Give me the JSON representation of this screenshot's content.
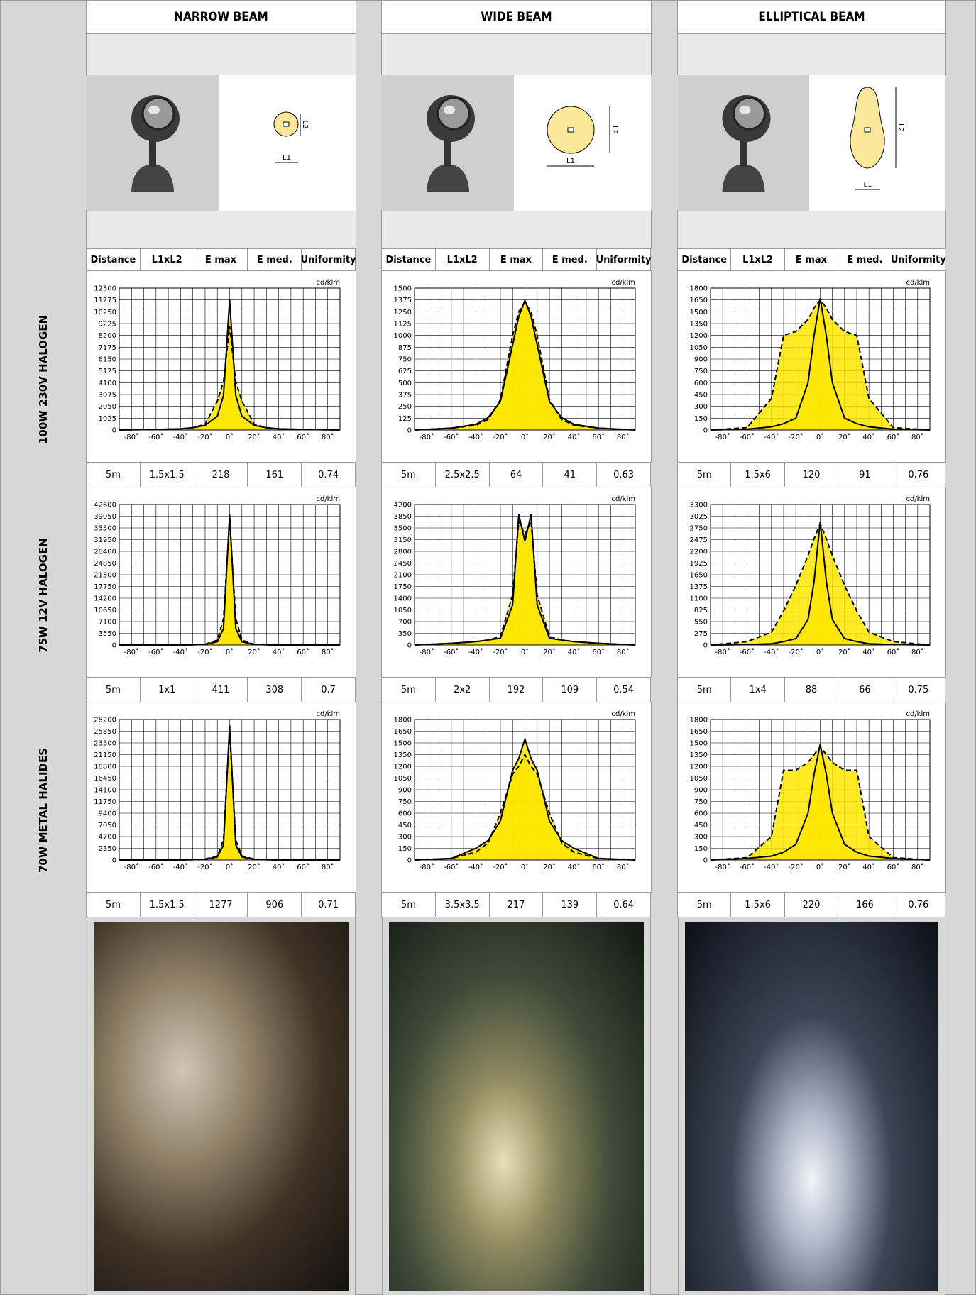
{
  "columns": [
    "NARROW BEAM",
    "WIDE BEAM",
    "ELLIPTICAL BEAM"
  ],
  "dimension_labels": [
    "L1",
    "L2"
  ],
  "table_header": [
    "Distance",
    "L1xL2",
    "E max",
    "E med.",
    "Uniformity"
  ],
  "unit": "cd/klm",
  "xlim": [
    -90,
    90
  ],
  "xticks": [
    {
      "value": -80,
      "label": "-80˚"
    },
    {
      "value": -60,
      "label": "-60˚"
    },
    {
      "value": -40,
      "label": "-40˚"
    },
    {
      "value": -20,
      "label": "-20˚"
    },
    {
      "value": 0,
      "label": "0˚"
    },
    {
      "value": 20,
      "label": "20˚"
    },
    {
      "value": 40,
      "label": "40˚"
    },
    {
      "value": 60,
      "label": "60˚"
    },
    {
      "value": 80,
      "label": "80˚"
    }
  ],
  "x": [
    -90,
    -60,
    -40,
    -30,
    -20,
    -10,
    -5,
    0,
    5,
    10,
    20,
    30,
    40,
    60,
    90
  ],
  "rows": [
    {
      "label": "100W 230V HALOGEN",
      "charts": [
        {
          "ylim": [
            0,
            12300
          ],
          "yticks": [
            0,
            1025,
            2050,
            3075,
            4100,
            5125,
            6150,
            7175,
            8200,
            9225,
            10250,
            11275,
            12300
          ],
          "series": [
            {
              "style": "solid",
              "values": [
                0,
                50,
                100,
                200,
                400,
                1200,
                3000,
                11300,
                3000,
                1200,
                400,
                200,
                100,
                50,
                0
              ]
            },
            {
              "style": "dashed",
              "values": [
                0,
                50,
                100,
                200,
                500,
                2500,
                4200,
                9000,
                4200,
                2500,
                500,
                200,
                100,
                50,
                0
              ]
            }
          ],
          "data": [
            "5m",
            "1.5x1.5",
            218,
            161,
            0.74
          ]
        },
        {
          "ylim": [
            0,
            1500
          ],
          "yticks": [
            0,
            125,
            250,
            375,
            500,
            625,
            750,
            875,
            1000,
            1125,
            1250,
            1375,
            1500
          ],
          "series": [
            {
              "style": "solid",
              "values": [
                0,
                20,
                60,
                130,
                300,
                900,
                1200,
                1370,
                1200,
                900,
                300,
                130,
                60,
                20,
                0
              ]
            },
            {
              "style": "dashed",
              "values": [
                0,
                20,
                50,
                110,
                320,
                1000,
                1250,
                1350,
                1250,
                1000,
                320,
                110,
                50,
                20,
                0
              ]
            }
          ],
          "data": [
            "5m",
            "2.5x2.5",
            64,
            41,
            0.63
          ]
        },
        {
          "ylim": [
            0,
            1800
          ],
          "yticks": [
            0,
            150,
            300,
            450,
            600,
            750,
            900,
            1050,
            1200,
            1350,
            1500,
            1650,
            1800
          ],
          "series": [
            {
              "style": "solid",
              "values": [
                0,
                10,
                40,
                80,
                150,
                600,
                1200,
                1670,
                1200,
                600,
                150,
                80,
                40,
                10,
                0
              ]
            },
            {
              "style": "dashed",
              "values": [
                0,
                30,
                400,
                1200,
                1250,
                1400,
                1550,
                1650,
                1550,
                1400,
                1250,
                1200,
                400,
                30,
                0
              ]
            }
          ],
          "data": [
            "5m",
            "1.5x6",
            120,
            91,
            0.76
          ]
        }
      ]
    },
    {
      "label": "75W 12V HALOGEN",
      "charts": [
        {
          "ylim": [
            0,
            42600
          ],
          "yticks": [
            0,
            3550,
            7100,
            10650,
            14200,
            17750,
            21300,
            24850,
            28400,
            31950,
            35500,
            39050,
            42600
          ],
          "series": [
            {
              "style": "solid",
              "values": [
                0,
                0,
                0,
                50,
                200,
                1000,
                5000,
                39500,
                5000,
                1000,
                200,
                50,
                0,
                0,
                0
              ]
            },
            {
              "style": "dashed",
              "values": [
                0,
                0,
                0,
                50,
                200,
                1500,
                8000,
                38000,
                8000,
                1500,
                200,
                50,
                0,
                0,
                0
              ]
            }
          ],
          "data": [
            "5m",
            "1x1",
            411,
            308,
            0.7
          ]
        },
        {
          "ylim": [
            0,
            4200
          ],
          "yticks": [
            0,
            350,
            700,
            1050,
            1400,
            1750,
            2100,
            2450,
            2800,
            3150,
            3500,
            3850,
            4200
          ],
          "series": [
            {
              "style": "solid",
              "values": [
                0,
                50,
                100,
                150,
                200,
                1200,
                3900,
                3100,
                3900,
                1200,
                200,
                150,
                100,
                50,
                0
              ]
            },
            {
              "style": "dashed",
              "values": [
                0,
                50,
                100,
                150,
                250,
                1500,
                3700,
                3300,
                3700,
                1500,
                250,
                150,
                100,
                50,
                0
              ]
            }
          ],
          "data": [
            "5m",
            "2x2",
            192,
            109,
            0.54
          ]
        },
        {
          "ylim": [
            0,
            3300
          ],
          "yticks": [
            0,
            275,
            550,
            825,
            1100,
            1375,
            1650,
            1925,
            2200,
            2475,
            2750,
            3025,
            3300
          ],
          "series": [
            {
              "style": "solid",
              "values": [
                0,
                10,
                30,
                80,
                150,
                600,
                1500,
                2900,
                1500,
                600,
                150,
                80,
                30,
                10,
                0
              ]
            },
            {
              "style": "dashed",
              "values": [
                0,
                80,
                300,
                800,
                1400,
                2100,
                2500,
                2850,
                2500,
                2100,
                1400,
                800,
                300,
                80,
                0
              ]
            }
          ],
          "data": [
            "5m",
            "1x4",
            88,
            66,
            0.75
          ]
        }
      ]
    },
    {
      "label": "70W METAL HALIDES",
      "charts": [
        {
          "ylim": [
            0,
            28200
          ],
          "yticks": [
            0,
            2350,
            4700,
            7050,
            9400,
            11750,
            14100,
            16450,
            18800,
            21150,
            23500,
            25850,
            28200
          ],
          "series": [
            {
              "style": "solid",
              "values": [
                0,
                0,
                0,
                50,
                150,
                600,
                3000,
                27000,
                3000,
                600,
                150,
                50,
                0,
                0,
                0
              ]
            },
            {
              "style": "dashed",
              "values": [
                0,
                0,
                0,
                50,
                200,
                800,
                4000,
                26000,
                4000,
                800,
                200,
                50,
                0,
                0,
                0
              ]
            }
          ],
          "data": [
            "5m",
            "1.5x1.5",
            1277,
            906,
            0.71
          ]
        },
        {
          "ylim": [
            0,
            1800
          ],
          "yticks": [
            0,
            150,
            300,
            450,
            600,
            750,
            900,
            1050,
            1200,
            1350,
            1500,
            1650,
            1800
          ],
          "series": [
            {
              "style": "solid",
              "values": [
                0,
                20,
                150,
                250,
                500,
                1150,
                1300,
                1550,
                1300,
                1150,
                500,
                250,
                150,
                20,
                0
              ]
            },
            {
              "style": "dashed",
              "values": [
                0,
                20,
                100,
                220,
                600,
                1100,
                1200,
                1350,
                1200,
                1100,
                600,
                220,
                100,
                20,
                0
              ]
            }
          ],
          "data": [
            "5m",
            "3.5x3.5",
            217,
            139,
            0.64
          ]
        },
        {
          "ylim": [
            0,
            1800
          ],
          "yticks": [
            0,
            150,
            300,
            450,
            600,
            750,
            900,
            1050,
            1200,
            1350,
            1500,
            1650,
            1800
          ],
          "series": [
            {
              "style": "solid",
              "values": [
                0,
                20,
                50,
                100,
                200,
                600,
                1100,
                1480,
                1100,
                600,
                200,
                100,
                50,
                20,
                0
              ]
            },
            {
              "style": "dashed",
              "values": [
                0,
                30,
                300,
                1150,
                1150,
                1250,
                1350,
                1450,
                1350,
                1250,
                1150,
                1150,
                300,
                30,
                0
              ]
            }
          ],
          "data": [
            "5m",
            "1.5x6",
            220,
            166,
            0.76
          ]
        }
      ]
    }
  ]
}
